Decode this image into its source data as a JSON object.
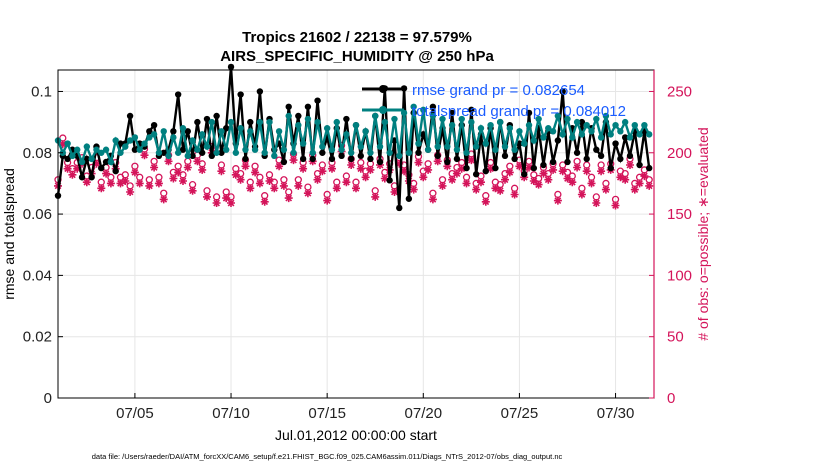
{
  "chart_data": {
    "type": "line",
    "title": "Tropics 21602 / 22138 = 97.579%",
    "subtitle": "AIRS_SPECIFIC_HUMIDITY @ 250 hPa",
    "xlabel": "Jul.01,2012 00:00:00 start",
    "ylabel": "rmse and totalspread",
    "ylabel_right": "# of obs: o=possible; ∗=evaluated",
    "xlim": [
      1,
      32
    ],
    "ylim": [
      0,
      0.107
    ],
    "ylim_right": [
      0,
      267.5
    ],
    "x_ticks": [
      5,
      10,
      15,
      20,
      25,
      30
    ],
    "x_tick_labels": [
      "07/05",
      "07/10",
      "07/15",
      "07/20",
      "07/25",
      "07/30"
    ],
    "y_ticks": [
      0,
      0.02,
      0.04,
      0.06,
      0.08,
      0.1
    ],
    "y_tick_labels": [
      "0",
      "0.02",
      "0.04",
      "0.06",
      "0.08",
      "0.1"
    ],
    "y_right_ticks": [
      0,
      50,
      100,
      150,
      200,
      250
    ],
    "y_right_tick_labels": [
      "0",
      "50",
      "100",
      "150",
      "200",
      "250"
    ],
    "legend": [
      "rmse grand pr = 0.082654",
      "totalspread grand pr = 0.084012"
    ],
    "legend_position": "top-right",
    "grid": true,
    "series": [
      {
        "name": "rmse",
        "color": "#000000",
        "axis": "left",
        "x": [
          1.0,
          1.25,
          1.5,
          1.75,
          2.0,
          2.25,
          2.5,
          2.75,
          3.0,
          3.25,
          3.5,
          3.75,
          4.0,
          4.25,
          4.5,
          4.75,
          5.0,
          5.25,
          5.5,
          5.75,
          6.0,
          6.25,
          6.5,
          6.75,
          7.0,
          7.25,
          7.5,
          7.75,
          8.0,
          8.25,
          8.5,
          8.75,
          9.0,
          9.25,
          9.5,
          9.75,
          10.0,
          10.25,
          10.5,
          10.75,
          11.0,
          11.25,
          11.5,
          11.75,
          12.0,
          12.25,
          12.5,
          12.75,
          13.0,
          13.25,
          13.5,
          13.75,
          14.0,
          14.25,
          14.5,
          14.75,
          15.0,
          15.25,
          15.5,
          15.75,
          16.0,
          16.25,
          16.5,
          16.75,
          17.0,
          17.25,
          17.5,
          17.75,
          18.0,
          18.25,
          18.5,
          18.75,
          19.0,
          19.25,
          19.5,
          19.75,
          20.0,
          20.25,
          20.5,
          20.75,
          21.0,
          21.25,
          21.5,
          21.75,
          22.0,
          22.25,
          22.5,
          22.75,
          23.0,
          23.25,
          23.5,
          23.75,
          24.0,
          24.25,
          24.5,
          24.75,
          25.0,
          25.25,
          25.5,
          25.75,
          26.0,
          26.25,
          26.5,
          26.75,
          27.0,
          27.25,
          27.5,
          27.75,
          28.0,
          28.25,
          28.5,
          28.75,
          29.0,
          29.25,
          29.5,
          29.75,
          30.0,
          30.25,
          30.5,
          30.75,
          31.0,
          31.25,
          31.5,
          31.75
        ],
        "values": [
          0.066,
          0.079,
          0.078,
          0.081,
          0.079,
          0.072,
          0.078,
          0.072,
          0.082,
          0.075,
          0.077,
          0.079,
          0.074,
          0.083,
          0.083,
          0.092,
          0.081,
          0.083,
          0.082,
          0.087,
          0.089,
          0.079,
          0.08,
          0.081,
          0.087,
          0.099,
          0.081,
          0.087,
          0.079,
          0.09,
          0.08,
          0.091,
          0.079,
          0.092,
          0.08,
          0.088,
          0.108,
          0.083,
          0.099,
          0.078,
          0.09,
          0.082,
          0.1,
          0.079,
          0.091,
          0.081,
          0.083,
          0.077,
          0.095,
          0.083,
          0.092,
          0.078,
          0.095,
          0.078,
          0.097,
          0.08,
          0.085,
          0.078,
          0.088,
          0.079,
          0.091,
          0.078,
          0.089,
          0.079,
          0.087,
          0.078,
          0.092,
          0.077,
          0.101,
          0.071,
          0.084,
          0.062,
          0.101,
          0.065,
          0.093,
          0.08,
          0.086,
          0.081,
          0.095,
          0.079,
          0.088,
          0.077,
          0.093,
          0.078,
          0.089,
          0.075,
          0.094,
          0.073,
          0.086,
          0.074,
          0.088,
          0.075,
          0.09,
          0.079,
          0.089,
          0.078,
          0.083,
          0.073,
          0.093,
          0.075,
          0.088,
          0.076,
          0.087,
          0.077,
          0.084,
          0.1,
          0.077,
          0.088,
          0.08,
          0.09,
          0.078,
          0.088,
          0.081,
          0.079,
          0.09,
          0.075,
          0.083,
          0.078,
          0.085,
          0.079,
          0.087,
          0.076,
          0.087,
          0.075
        ]
      },
      {
        "name": "totalspread",
        "color": "#008080",
        "axis": "left",
        "x": [
          1.0,
          1.25,
          1.5,
          1.75,
          2.0,
          2.25,
          2.5,
          2.75,
          3.0,
          3.25,
          3.5,
          3.75,
          4.0,
          4.25,
          4.5,
          4.75,
          5.0,
          5.25,
          5.5,
          5.75,
          6.0,
          6.25,
          6.5,
          6.75,
          7.0,
          7.25,
          7.5,
          7.75,
          8.0,
          8.25,
          8.5,
          8.75,
          9.0,
          9.25,
          9.5,
          9.75,
          10.0,
          10.25,
          10.5,
          10.75,
          11.0,
          11.25,
          11.5,
          11.75,
          12.0,
          12.25,
          12.5,
          12.75,
          13.0,
          13.25,
          13.5,
          13.75,
          14.0,
          14.25,
          14.5,
          14.75,
          15.0,
          15.25,
          15.5,
          15.75,
          16.0,
          16.25,
          16.5,
          16.75,
          17.0,
          17.25,
          17.5,
          17.75,
          18.0,
          18.25,
          18.5,
          18.75,
          19.0,
          19.25,
          19.5,
          19.75,
          20.0,
          20.25,
          20.5,
          20.75,
          21.0,
          21.25,
          21.5,
          21.75,
          22.0,
          22.25,
          22.5,
          22.75,
          23.0,
          23.25,
          23.5,
          23.75,
          24.0,
          24.25,
          24.5,
          24.75,
          25.0,
          25.25,
          25.5,
          25.75,
          26.0,
          26.25,
          26.5,
          26.75,
          27.0,
          27.25,
          27.5,
          27.75,
          28.0,
          28.25,
          28.5,
          28.75,
          29.0,
          29.25,
          29.5,
          29.75,
          30.0,
          30.25,
          30.5,
          30.75,
          31.0,
          31.25,
          31.5,
          31.75
        ],
        "values": [
          0.084,
          0.08,
          0.083,
          0.079,
          0.081,
          0.077,
          0.082,
          0.078,
          0.081,
          0.08,
          0.081,
          0.077,
          0.084,
          0.08,
          0.082,
          0.084,
          0.085,
          0.081,
          0.083,
          0.085,
          0.086,
          0.08,
          0.087,
          0.079,
          0.085,
          0.08,
          0.088,
          0.079,
          0.084,
          0.081,
          0.086,
          0.082,
          0.09,
          0.08,
          0.087,
          0.081,
          0.09,
          0.08,
          0.088,
          0.081,
          0.087,
          0.081,
          0.09,
          0.08,
          0.09,
          0.079,
          0.087,
          0.081,
          0.092,
          0.08,
          0.089,
          0.083,
          0.091,
          0.08,
          0.09,
          0.082,
          0.088,
          0.081,
          0.09,
          0.081,
          0.086,
          0.08,
          0.089,
          0.082,
          0.087,
          0.08,
          0.092,
          0.082,
          0.09,
          0.08,
          0.091,
          0.079,
          0.093,
          0.08,
          0.095,
          0.083,
          0.094,
          0.081,
          0.092,
          0.082,
          0.091,
          0.082,
          0.089,
          0.081,
          0.091,
          0.08,
          0.09,
          0.082,
          0.088,
          0.083,
          0.089,
          0.081,
          0.09,
          0.082,
          0.088,
          0.081,
          0.087,
          0.083,
          0.089,
          0.084,
          0.091,
          0.085,
          0.088,
          0.087,
          0.092,
          0.086,
          0.091,
          0.085,
          0.09,
          0.086,
          0.089,
          0.087,
          0.091,
          0.085,
          0.092,
          0.086,
          0.089,
          0.087,
          0.09,
          0.085,
          0.089,
          0.086,
          0.089,
          0.086
        ]
      },
      {
        "name": "obs possible",
        "color": "#d4145a",
        "axis": "right",
        "marker": "o",
        "x": [
          1.0,
          1.25,
          1.5,
          1.75,
          2.0,
          2.25,
          2.5,
          2.75,
          3.0,
          3.25,
          3.5,
          3.75,
          4.0,
          4.25,
          4.5,
          4.75,
          5.0,
          5.25,
          5.5,
          5.75,
          6.0,
          6.25,
          6.5,
          6.75,
          7.0,
          7.25,
          7.5,
          7.75,
          8.0,
          8.25,
          8.5,
          8.75,
          9.0,
          9.25,
          9.5,
          9.75,
          10.0,
          10.25,
          10.5,
          10.75,
          11.0,
          11.25,
          11.5,
          11.75,
          12.0,
          12.25,
          12.5,
          12.75,
          13.0,
          13.25,
          13.5,
          13.75,
          14.0,
          14.25,
          14.5,
          14.75,
          15.0,
          15.25,
          15.5,
          15.75,
          16.0,
          16.25,
          16.5,
          16.75,
          17.0,
          17.25,
          17.5,
          17.75,
          18.0,
          18.25,
          18.5,
          18.75,
          19.0,
          19.25,
          19.5,
          19.75,
          20.0,
          20.25,
          20.5,
          20.75,
          21.0,
          21.25,
          21.5,
          21.75,
          22.0,
          22.25,
          22.5,
          22.75,
          23.0,
          23.25,
          23.5,
          23.75,
          24.0,
          24.25,
          24.5,
          24.75,
          25.0,
          25.25,
          25.5,
          25.75,
          26.0,
          26.25,
          26.5,
          26.75,
          27.0,
          27.25,
          27.5,
          27.75,
          28.0,
          28.25,
          28.5,
          28.75,
          29.0,
          29.25,
          29.5,
          29.75,
          30.0,
          30.25,
          30.5,
          30.75,
          31.0,
          31.25,
          31.5,
          31.75
        ],
        "values": [
          178,
          212,
          192,
          187,
          192,
          196,
          181,
          188,
          196,
          176,
          188,
          180,
          192,
          180,
          182,
          173,
          189,
          180,
          203,
          178,
          193,
          180,
          167,
          198,
          184,
          189,
          182,
          193,
          174,
          198,
          191,
          169,
          205,
          164,
          190,
          168,
          164,
          187,
          183,
          194,
          176,
          189,
          180,
          165,
          182,
          176,
          194,
          178,
          168,
          199,
          178,
          192,
          172,
          198,
          183,
          190,
          166,
          192,
          176,
          206,
          181,
          195,
          176,
          192,
          185,
          191,
          169,
          195,
          184,
          191,
          173,
          196,
          190,
          182,
          175,
          197,
          185,
          191,
          167,
          198,
          178,
          194,
          183,
          188,
          192,
          180,
          199,
          175,
          181,
          165,
          192,
          176,
          174,
          183,
          189,
          171,
          194,
          185,
          193,
          182,
          179,
          188,
          183,
          191,
          166,
          190,
          184,
          181,
          193,
          171,
          190,
          180,
          164,
          190,
          175,
          191,
          162,
          185,
          183,
          195,
          175,
          180,
          186,
          178
        ]
      },
      {
        "name": "obs evaluated",
        "color": "#d4145a",
        "axis": "right",
        "marker": "*",
        "x": [
          1.0,
          1.25,
          1.5,
          1.75,
          2.0,
          2.25,
          2.5,
          2.75,
          3.0,
          3.25,
          3.5,
          3.75,
          4.0,
          4.25,
          4.5,
          4.75,
          5.0,
          5.25,
          5.5,
          5.75,
          6.0,
          6.25,
          6.5,
          6.75,
          7.0,
          7.25,
          7.5,
          7.75,
          8.0,
          8.25,
          8.5,
          8.75,
          9.0,
          9.25,
          9.5,
          9.75,
          10.0,
          10.25,
          10.5,
          10.75,
          11.0,
          11.25,
          11.5,
          11.75,
          12.0,
          12.25,
          12.5,
          12.75,
          13.0,
          13.25,
          13.5,
          13.75,
          14.0,
          14.25,
          14.5,
          14.75,
          15.0,
          15.25,
          15.5,
          15.75,
          16.0,
          16.25,
          16.5,
          16.75,
          17.0,
          17.25,
          17.5,
          17.75,
          18.0,
          18.25,
          18.5,
          18.75,
          19.0,
          19.25,
          19.5,
          19.75,
          20.0,
          20.25,
          20.5,
          20.75,
          21.0,
          21.25,
          21.5,
          21.75,
          22.0,
          22.25,
          22.5,
          22.75,
          23.0,
          23.25,
          23.5,
          23.75,
          24.0,
          24.25,
          24.5,
          24.75,
          25.0,
          25.25,
          25.5,
          25.75,
          26.0,
          26.25,
          26.5,
          26.75,
          27.0,
          27.25,
          27.5,
          27.75,
          28.0,
          28.25,
          28.5,
          28.75,
          29.0,
          29.25,
          29.5,
          29.75,
          30.0,
          30.25,
          30.5,
          30.75,
          31.0,
          31.25,
          31.5,
          31.75
        ],
        "values": [
          173,
          207,
          187,
          182,
          187,
          191,
          176,
          183,
          191,
          171,
          183,
          175,
          187,
          175,
          177,
          168,
          184,
          175,
          198,
          173,
          188,
          175,
          162,
          193,
          179,
          184,
          177,
          188,
          169,
          193,
          186,
          164,
          200,
          159,
          185,
          163,
          159,
          182,
          178,
          189,
          171,
          184,
          175,
          160,
          177,
          171,
          189,
          173,
          163,
          194,
          173,
          187,
          167,
          193,
          178,
          185,
          161,
          187,
          171,
          201,
          176,
          190,
          171,
          187,
          180,
          186,
          164,
          190,
          179,
          186,
          168,
          191,
          185,
          177,
          170,
          192,
          180,
          186,
          162,
          193,
          173,
          189,
          178,
          183,
          187,
          175,
          194,
          170,
          176,
          160,
          187,
          171,
          169,
          178,
          184,
          166,
          189,
          180,
          188,
          177,
          174,
          183,
          178,
          186,
          161,
          185,
          179,
          176,
          188,
          166,
          185,
          175,
          159,
          185,
          170,
          186,
          157,
          180,
          178,
          190,
          170,
          175,
          181,
          173
        ]
      }
    ],
    "footnote": "data file: /Users/raeder/DAI/ATM_forcXX/CAM6_setup/f.e21.FHIST_BGC.f09_025.CAM6assim.011/Diags_NTrS_2012-07/obs_diag_output.nc"
  }
}
